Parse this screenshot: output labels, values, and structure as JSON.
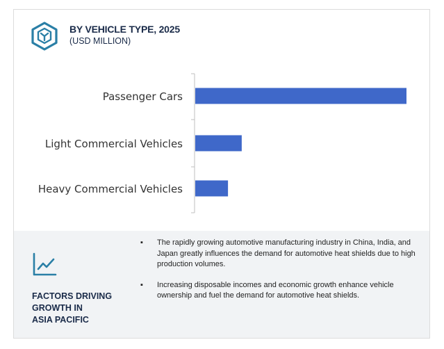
{
  "header": {
    "title": "BY VEHICLE TYPE, 2025",
    "subtitle": "(USD MILLION)",
    "icon": "hexagon-logo-icon"
  },
  "colors": {
    "bar": "#3f68c9",
    "accent": "#2a7fa6",
    "title": "#1a2b49",
    "footer_bg": "#f1f3f5"
  },
  "chart_data": {
    "type": "bar",
    "orientation": "horizontal",
    "categories": [
      "Passenger Cars",
      "Light Commercial Vehicles",
      "Heavy Commercial Vehicles"
    ],
    "values": [
      100,
      22,
      15.5
    ],
    "value_scale": "relative (no axis values shown)",
    "title": "BY VEHICLE TYPE, 2025",
    "subtitle": "(USD MILLION)",
    "xlabel": "",
    "ylabel": "",
    "xlim": [
      0,
      100
    ],
    "grid": false,
    "legend": "none"
  },
  "footer": {
    "icon": "trend-chart-icon",
    "heading": "FACTORS DRIVING\nGROWTH IN\nASIA PACIFIC",
    "bullets": [
      "The rapidly growing automotive manufacturing industry in China, India, and Japan greatly influences the demand for automotive heat shields due to high production volumes.",
      "Increasing disposable incomes and economic growth enhance vehicle ownership and fuel the demand for automotive heat shields."
    ]
  }
}
